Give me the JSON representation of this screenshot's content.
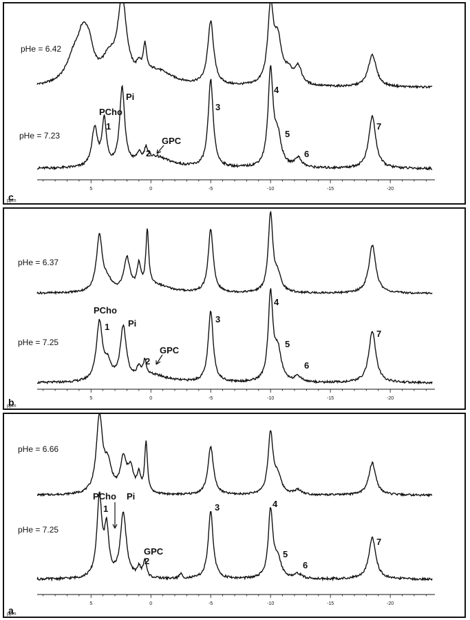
{
  "chart_data": [
    {
      "type": "line",
      "panel": "c",
      "axis": {
        "unit": "ppm",
        "ticks": [
          "5",
          "0",
          "-5",
          "-10",
          "-15",
          "-20"
        ],
        "xlim": [
          9.5,
          -23.5
        ],
        "reversed": true
      },
      "spectra": [
        {
          "name": "pHe = 6.42",
          "baseline": 0.0,
          "peaks": [
            {
              "ppm": 6.4,
              "h": 0.32,
              "w": 0.8
            },
            {
              "ppm": 5.7,
              "h": 0.38,
              "w": 0.5
            },
            {
              "ppm": 5.2,
              "h": 0.36,
              "w": 0.5
            },
            {
              "ppm": 3.5,
              "h": 0.26,
              "w": 0.7
            },
            {
              "ppm": 2.4,
              "h": 0.98,
              "w": 0.45
            },
            {
              "ppm": 1.0,
              "h": 0.12,
              "w": 0.2
            },
            {
              "ppm": 0.5,
              "h": 0.34,
              "w": 0.16
            },
            {
              "ppm": -0.5,
              "h": 0.18,
              "w": 1.6
            },
            {
              "ppm": -5.0,
              "h": 0.78,
              "w": 0.3
            },
            {
              "ppm": -10.0,
              "h": 0.9,
              "w": 0.28
            },
            {
              "ppm": -10.6,
              "h": 0.52,
              "w": 0.4
            },
            {
              "ppm": -11.5,
              "h": 0.14,
              "w": 0.4
            },
            {
              "ppm": -12.3,
              "h": 0.22,
              "w": 0.35
            },
            {
              "ppm": -18.5,
              "h": 0.4,
              "w": 0.4
            }
          ]
        },
        {
          "name": "pHe = 7.23",
          "baseline": 0.0,
          "peaks": [
            {
              "ppm": 4.7,
              "h": 0.4,
              "w": 0.28
            },
            {
              "ppm": 3.9,
              "h": 0.48,
              "w": 0.22
            },
            {
              "ppm": 2.4,
              "h": 0.82,
              "w": 0.25
            },
            {
              "ppm": 1.0,
              "h": 0.08,
              "w": 0.2
            },
            {
              "ppm": 0.4,
              "h": 0.12,
              "w": 0.16
            },
            {
              "ppm": -0.3,
              "h": 0.12,
              "w": 1.6
            },
            {
              "ppm": -5.0,
              "h": 0.92,
              "w": 0.25
            },
            {
              "ppm": -10.0,
              "h": 1.0,
              "w": 0.25
            },
            {
              "ppm": -10.6,
              "h": 0.3,
              "w": 0.35
            },
            {
              "ppm": -12.3,
              "h": 0.1,
              "w": 0.35
            },
            {
              "ppm": -18.5,
              "h": 0.55,
              "w": 0.35
            }
          ]
        }
      ],
      "labels": [
        "PCho",
        "Pi",
        "GPC",
        "1",
        "2",
        "3",
        "4",
        "5",
        "6",
        "7",
        "c"
      ]
    },
    {
      "type": "line",
      "panel": "b",
      "axis": {
        "unit": "ppm",
        "ticks": [
          "5",
          "0",
          "-5",
          "-10",
          "-15",
          "-20"
        ],
        "xlim": [
          9.5,
          -23.5
        ],
        "reversed": true
      },
      "spectra": [
        {
          "name": "pHe = 6.37",
          "baseline": 0.0,
          "peaks": [
            {
              "ppm": 4.3,
              "h": 0.72,
              "w": 0.3
            },
            {
              "ppm": 3.6,
              "h": 0.12,
              "w": 0.4
            },
            {
              "ppm": 2.0,
              "h": 0.42,
              "w": 0.3
            },
            {
              "ppm": 1.0,
              "h": 0.3,
              "w": 0.18
            },
            {
              "ppm": 0.3,
              "h": 0.72,
              "w": 0.14
            },
            {
              "ppm": -0.3,
              "h": 0.1,
              "w": 1.5
            },
            {
              "ppm": -5.0,
              "h": 0.82,
              "w": 0.25
            },
            {
              "ppm": -10.0,
              "h": 1.0,
              "w": 0.23
            },
            {
              "ppm": -10.6,
              "h": 0.2,
              "w": 0.35
            },
            {
              "ppm": -18.5,
              "h": 0.62,
              "w": 0.35
            }
          ]
        },
        {
          "name": "pHe = 7.25",
          "baseline": 0.0,
          "peaks": [
            {
              "ppm": 4.3,
              "h": 0.68,
              "w": 0.3
            },
            {
              "ppm": 3.6,
              "h": 0.18,
              "w": 0.35
            },
            {
              "ppm": 2.3,
              "h": 0.62,
              "w": 0.3
            },
            {
              "ppm": 1.0,
              "h": 0.12,
              "w": 0.2
            },
            {
              "ppm": 0.5,
              "h": 0.18,
              "w": 0.16
            },
            {
              "ppm": -0.2,
              "h": 0.08,
              "w": 1.5
            },
            {
              "ppm": -5.0,
              "h": 0.82,
              "w": 0.25
            },
            {
              "ppm": -10.0,
              "h": 1.0,
              "w": 0.23
            },
            {
              "ppm": -10.6,
              "h": 0.35,
              "w": 0.35
            },
            {
              "ppm": -12.3,
              "h": 0.06,
              "w": 0.35
            },
            {
              "ppm": -18.5,
              "h": 0.6,
              "w": 0.35
            }
          ]
        }
      ],
      "labels": [
        "PCho",
        "Pi",
        "GPC",
        "1",
        "2",
        "3",
        "4",
        "5",
        "6",
        "7",
        "b"
      ]
    },
    {
      "type": "line",
      "panel": "a",
      "axis": {
        "unit": "ppm",
        "ticks": [
          "5",
          "0",
          "-5",
          "-10",
          "-15",
          "-20"
        ],
        "xlim": [
          9.5,
          -23.5
        ],
        "reversed": true
      },
      "spectra": [
        {
          "name": "pHe = 6.66",
          "baseline": 0.0,
          "peaks": [
            {
              "ppm": 4.3,
              "h": 0.98,
              "w": 0.3
            },
            {
              "ppm": 3.6,
              "h": 0.35,
              "w": 0.4
            },
            {
              "ppm": 2.3,
              "h": 0.42,
              "w": 0.3
            },
            {
              "ppm": 1.7,
              "h": 0.3,
              "w": 0.3
            },
            {
              "ppm": 1.0,
              "h": 0.22,
              "w": 0.18
            },
            {
              "ppm": 0.4,
              "h": 0.65,
              "w": 0.14
            },
            {
              "ppm": -5.0,
              "h": 0.62,
              "w": 0.28
            },
            {
              "ppm": -10.0,
              "h": 0.78,
              "w": 0.25
            },
            {
              "ppm": -10.6,
              "h": 0.22,
              "w": 0.35
            },
            {
              "ppm": -12.3,
              "h": 0.06,
              "w": 0.35
            },
            {
              "ppm": -18.5,
              "h": 0.42,
              "w": 0.35
            }
          ]
        },
        {
          "name": "pHe = 7.25",
          "baseline": 0.0,
          "peaks": [
            {
              "ppm": 4.3,
              "h": 0.86,
              "w": 0.25
            },
            {
              "ppm": 3.7,
              "h": 0.5,
              "w": 0.22
            },
            {
              "ppm": 2.3,
              "h": 0.7,
              "w": 0.3
            },
            {
              "ppm": 1.0,
              "h": 0.1,
              "w": 0.2
            },
            {
              "ppm": 0.5,
              "h": 0.18,
              "w": 0.16
            },
            {
              "ppm": -2.5,
              "h": 0.05,
              "w": 0.15
            },
            {
              "ppm": -5.0,
              "h": 0.72,
              "w": 0.25
            },
            {
              "ppm": -10.0,
              "h": 0.72,
              "w": 0.23
            },
            {
              "ppm": -10.6,
              "h": 0.2,
              "w": 0.35
            },
            {
              "ppm": -12.3,
              "h": 0.05,
              "w": 0.35
            },
            {
              "ppm": -18.5,
              "h": 0.45,
              "w": 0.35
            }
          ]
        }
      ],
      "labels": [
        "PCho",
        "Pi",
        "GPC",
        "1",
        "2",
        "3",
        "4",
        "5",
        "6",
        "7",
        "a"
      ]
    }
  ],
  "style": {
    "line_color": "#111111",
    "frame_color": "#111111",
    "background": "#ffffff"
  }
}
